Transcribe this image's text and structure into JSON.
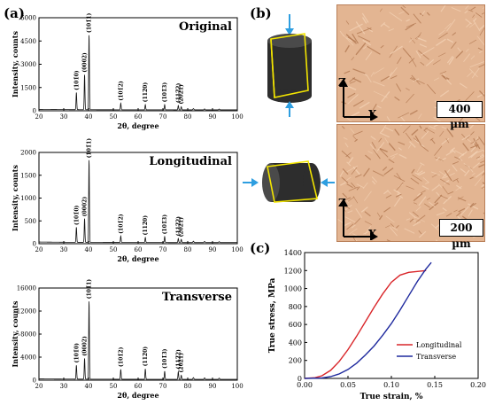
{
  "panel_labels": {
    "a": "(a)",
    "b": "(b)",
    "c": "(c)"
  },
  "colors": {
    "xrd_line": "#111111",
    "longitudinal": "#d9262a",
    "transverse": "#1f2a9e",
    "micro_bg": "#e3b592",
    "cylinder": "#2d2d2d",
    "cut_frame": "#f3e500",
    "arrow": "#2e9ee0"
  },
  "micrographs": {
    "top": {
      "scale": "400 µm",
      "axis_vertical": "Z",
      "axis_horizontal": "X"
    },
    "bottom": {
      "scale": "200 µm",
      "axis_vertical": "Z",
      "axis_horizontal": "X"
    }
  },
  "chart_data": [
    {
      "type": "line",
      "title": "Original",
      "xlabel": "2θ, degree",
      "ylabel": "Intensity, counts",
      "xlim": [
        20,
        100
      ],
      "ylim": [
        0,
        6000
      ],
      "xticks": [
        20,
        30,
        40,
        50,
        60,
        70,
        80,
        90,
        100
      ],
      "yticks": [
        0,
        1500,
        3000,
        4500,
        6000
      ],
      "peaks": [
        {
          "x": 35.1,
          "y": 1100,
          "label": "(101̄0)"
        },
        {
          "x": 38.4,
          "y": 2250,
          "label": "(0002)"
        },
        {
          "x": 40.2,
          "y": 4800,
          "label": "(101̄1)"
        },
        {
          "x": 53.0,
          "y": 420,
          "label": "(101̄2)"
        },
        {
          "x": 62.9,
          "y": 330,
          "label": "(112̄0)"
        },
        {
          "x": 70.7,
          "y": 330,
          "label": "(101̄3)"
        },
        {
          "x": 76.2,
          "y": 280,
          "label": "(112̄2)"
        },
        {
          "x": 77.4,
          "y": 200,
          "label": "(202̄1)"
        }
      ],
      "minor_peaks": [
        {
          "x": 82.3,
          "y": 80
        },
        {
          "x": 86.8,
          "y": 60
        },
        {
          "x": 92.7,
          "y": 50
        }
      ],
      "baseline": 60
    },
    {
      "type": "line",
      "title": "Longitudinal",
      "xlabel": "2θ, degree",
      "ylabel": "Intensity, counts",
      "xlim": [
        20,
        100
      ],
      "ylim": [
        0,
        2000
      ],
      "xticks": [
        20,
        30,
        40,
        50,
        60,
        70,
        80,
        90,
        100
      ],
      "yticks": [
        0,
        500,
        1000,
        1500,
        2000
      ],
      "peaks": [
        {
          "x": 35.1,
          "y": 330,
          "label": "(101̄0)"
        },
        {
          "x": 38.4,
          "y": 520,
          "label": "(0002)"
        },
        {
          "x": 40.2,
          "y": 1800,
          "label": "(101̄1)"
        },
        {
          "x": 53.0,
          "y": 140,
          "label": "(101̄2)"
        },
        {
          "x": 62.9,
          "y": 110,
          "label": "(112̄0)"
        },
        {
          "x": 70.7,
          "y": 130,
          "label": "(101̄3)"
        },
        {
          "x": 76.2,
          "y": 90,
          "label": "(112̄2)"
        },
        {
          "x": 77.4,
          "y": 70,
          "label": "(202̄1)"
        }
      ],
      "minor_peaks": [
        {
          "x": 82.3,
          "y": 30
        },
        {
          "x": 86.8,
          "y": 25
        },
        {
          "x": 92.7,
          "y": 20
        }
      ],
      "baseline": 25
    },
    {
      "type": "line",
      "title": "Transverse",
      "xlabel": "2θ, degree",
      "ylabel": "Intensity, counts",
      "xlim": [
        20,
        100
      ],
      "ylim": [
        0,
        16000
      ],
      "xticks": [
        20,
        30,
        40,
        50,
        60,
        70,
        80,
        90,
        100
      ],
      "yticks": [
        0,
        4000,
        8000,
        12000,
        16000
      ],
      "peaks": [
        {
          "x": 35.1,
          "y": 2400,
          "label": "(101̄0)"
        },
        {
          "x": 38.4,
          "y": 3600,
          "label": "(0002)"
        },
        {
          "x": 40.2,
          "y": 13500,
          "label": "(101̄1)"
        },
        {
          "x": 53.0,
          "y": 1700,
          "label": "(101̄2)"
        },
        {
          "x": 62.9,
          "y": 1800,
          "label": "(112̄0)"
        },
        {
          "x": 70.7,
          "y": 1400,
          "label": "(101̄3)"
        },
        {
          "x": 76.2,
          "y": 1300,
          "label": "(112̄2)"
        },
        {
          "x": 77.4,
          "y": 700,
          "label": "(202̄1)"
        }
      ],
      "minor_peaks": [
        {
          "x": 82.3,
          "y": 300
        },
        {
          "x": 86.8,
          "y": 250
        },
        {
          "x": 92.7,
          "y": 200
        }
      ],
      "baseline": 150
    },
    {
      "type": "line",
      "title": "",
      "xlabel": "True strain, %",
      "ylabel": "True stress, MPa",
      "xlim": [
        0,
        0.2
      ],
      "ylim": [
        0,
        1400
      ],
      "xticks": [
        0.0,
        0.05,
        0.1,
        0.15,
        0.2
      ],
      "xtick_labels": [
        "0.00",
        "0.05",
        "0.10",
        "0.15",
        "0.20"
      ],
      "yticks": [
        0,
        200,
        400,
        600,
        800,
        1000,
        1200,
        1400
      ],
      "legend_position": "lower-right",
      "series": [
        {
          "name": "Longitudinal",
          "x": [
            0.0,
            0.012,
            0.02,
            0.03,
            0.04,
            0.05,
            0.06,
            0.07,
            0.08,
            0.09,
            0.1,
            0.11,
            0.12,
            0.13,
            0.14
          ],
          "y": [
            0,
            8,
            30,
            90,
            190,
            320,
            470,
            630,
            790,
            940,
            1070,
            1150,
            1180,
            1190,
            1200
          ]
        },
        {
          "name": "Transverse",
          "x": [
            0.0,
            0.02,
            0.03,
            0.04,
            0.05,
            0.06,
            0.07,
            0.08,
            0.09,
            0.1,
            0.11,
            0.12,
            0.13,
            0.14,
            0.146
          ],
          "y": [
            0,
            5,
            20,
            50,
            100,
            170,
            260,
            360,
            480,
            610,
            760,
            920,
            1080,
            1220,
            1290
          ]
        }
      ]
    }
  ]
}
